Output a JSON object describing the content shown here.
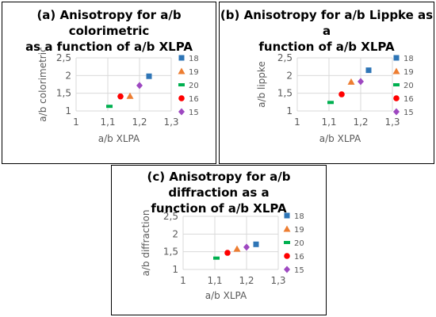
{
  "chart_data": [
    {
      "type": "scatter",
      "title": "(a) Anisotropy for a/b colorimetric as a function of a/b XLPA",
      "title_lines": [
        "(a) Anisotropy for a/b colorimetric",
        "as a function of a/b XLPA"
      ],
      "xlabel": "a/b XLPA",
      "ylabel": "a/b colorimetric",
      "xlim": [
        1,
        1.3
      ],
      "ylim": [
        1,
        2.5
      ],
      "xticks": [
        "1",
        "1,1",
        "1,2",
        "1,3"
      ],
      "yticks": [
        "1",
        "1,5",
        "2",
        "2,5"
      ],
      "grid": true,
      "legend": "right",
      "series": [
        {
          "name": "18",
          "x": [
            1.23
          ],
          "y": [
            1.98
          ],
          "color": "#2e75b6",
          "marker": "square"
        },
        {
          "name": "19",
          "x": [
            1.17
          ],
          "y": [
            1.42
          ],
          "color": "#ed7d31",
          "marker": "triangle"
        },
        {
          "name": "20",
          "x": [
            1.105
          ],
          "y": [
            1.13
          ],
          "color": "#00b050",
          "marker": "dash"
        },
        {
          "name": "16",
          "x": [
            1.14
          ],
          "y": [
            1.41
          ],
          "color": "#ff0000",
          "marker": "circle"
        },
        {
          "name": "15",
          "x": [
            1.2
          ],
          "y": [
            1.72
          ],
          "color": "#9e48c1",
          "marker": "diamond"
        }
      ]
    },
    {
      "type": "scatter",
      "title": "(b) Anisotropy for a/b Lippke as a function of a/b XLPA",
      "title_lines": [
        "(b) Anisotropy for a/b Lippke as a",
        "function of a/b XLPA"
      ],
      "xlabel": "a/b XLPA",
      "ylabel": "a/b lippke",
      "xlim": [
        1,
        1.3
      ],
      "ylim": [
        1,
        2.5
      ],
      "xticks": [
        "1",
        "1,1",
        "1,2",
        "1,3"
      ],
      "yticks": [
        "1",
        "1,5",
        "2",
        "2,5"
      ],
      "grid": true,
      "legend": "right",
      "series": [
        {
          "name": "18",
          "x": [
            1.225
          ],
          "y": [
            2.15
          ],
          "color": "#2e75b6",
          "marker": "square"
        },
        {
          "name": "19",
          "x": [
            1.17
          ],
          "y": [
            1.82
          ],
          "color": "#ed7d31",
          "marker": "triangle"
        },
        {
          "name": "20",
          "x": [
            1.105
          ],
          "y": [
            1.24
          ],
          "color": "#00b050",
          "marker": "dash"
        },
        {
          "name": "16",
          "x": [
            1.14
          ],
          "y": [
            1.47
          ],
          "color": "#ff0000",
          "marker": "circle"
        },
        {
          "name": "15",
          "x": [
            1.2
          ],
          "y": [
            1.83
          ],
          "color": "#9e48c1",
          "marker": "diamond"
        }
      ]
    },
    {
      "type": "scatter",
      "title": "(c) Anisotropy for a/b diffraction as a function of a/b XLPA",
      "title_lines": [
        "(c) Anisotropy for a/b diffraction as a",
        "function of a/b XLPA"
      ],
      "xlabel": "a/b XLPA",
      "ylabel": "a/b diffraction",
      "xlim": [
        1,
        1.3
      ],
      "ylim": [
        1,
        2.5
      ],
      "xticks": [
        "1",
        "1,1",
        "1,2",
        "1,3"
      ],
      "yticks": [
        "1",
        "1,5",
        "2",
        "2,5"
      ],
      "grid": true,
      "legend": "right",
      "series": [
        {
          "name": "18",
          "x": [
            1.23
          ],
          "y": [
            1.71
          ],
          "color": "#2e75b6",
          "marker": "square"
        },
        {
          "name": "19",
          "x": [
            1.17
          ],
          "y": [
            1.58
          ],
          "color": "#ed7d31",
          "marker": "triangle"
        },
        {
          "name": "20",
          "x": [
            1.105
          ],
          "y": [
            1.32
          ],
          "color": "#00b050",
          "marker": "dash"
        },
        {
          "name": "16",
          "x": [
            1.14
          ],
          "y": [
            1.47
          ],
          "color": "#ff0000",
          "marker": "circle"
        },
        {
          "name": "15",
          "x": [
            1.2
          ],
          "y": [
            1.63
          ],
          "color": "#9e48c1",
          "marker": "diamond"
        }
      ]
    }
  ]
}
